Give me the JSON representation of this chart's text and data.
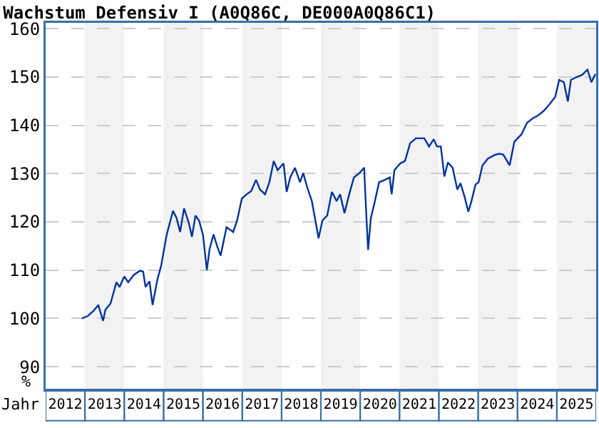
{
  "chart_data": {
    "type": "line",
    "title": "Wachstum Defensiv I (A0Q86C, DE000A0Q86C1)",
    "xlabel": "Jahr",
    "ylabel": "%",
    "x": [
      2012.92,
      2013.07,
      2013.22,
      2013.34,
      2013.4,
      2013.46,
      2013.52,
      2013.65,
      2013.8,
      2013.88,
      2014.0,
      2014.1,
      2014.24,
      2014.4,
      2014.48,
      2014.54,
      2014.64,
      2014.72,
      2014.84,
      2014.94,
      2015.08,
      2015.24,
      2015.33,
      2015.42,
      2015.52,
      2015.64,
      2015.72,
      2015.81,
      2015.9,
      2016.0,
      2016.1,
      2016.17,
      2016.27,
      2016.36,
      2016.45,
      2016.6,
      2016.77,
      2016.87,
      2016.99,
      2017.11,
      2017.23,
      2017.35,
      2017.45,
      2017.58,
      2017.69,
      2017.8,
      2017.9,
      2018.05,
      2018.13,
      2018.22,
      2018.34,
      2018.47,
      2018.55,
      2018.65,
      2018.77,
      2018.86,
      2018.94,
      2019.04,
      2019.16,
      2019.28,
      2019.4,
      2019.49,
      2019.6,
      2019.72,
      2019.84,
      2019.98,
      2020.1,
      2020.15,
      2020.2,
      2020.27,
      2020.36,
      2020.48,
      2020.63,
      2020.75,
      2020.8,
      2020.87,
      2021.02,
      2021.14,
      2021.27,
      2021.42,
      2021.63,
      2021.75,
      2021.87,
      2021.95,
      2022.05,
      2022.14,
      2022.23,
      2022.35,
      2022.47,
      2022.55,
      2022.65,
      2022.75,
      2022.83,
      2022.93,
      2023.01,
      2023.11,
      2023.25,
      2023.43,
      2023.55,
      2023.64,
      2023.8,
      2023.92,
      2024.1,
      2024.24,
      2024.4,
      2024.52,
      2024.67,
      2024.82,
      2024.96,
      2025.06,
      2025.18,
      2025.28,
      2025.36,
      2025.48,
      2025.64,
      2025.78,
      2025.88,
      2025.98
    ],
    "series": [
      {
        "color": "#0033a0",
        "values": [
          100.0,
          100.5,
          101.6,
          102.8,
          101.1,
          99.5,
          101.8,
          103.1,
          107.5,
          106.5,
          108.7,
          107.5,
          109.0,
          109.9,
          109.7,
          106.5,
          107.7,
          102.8,
          108.0,
          111.0,
          117.4,
          122.3,
          120.8,
          117.9,
          122.8,
          119.8,
          116.9,
          121.3,
          120.3,
          117.4,
          110.0,
          114.4,
          117.4,
          115.0,
          113.0,
          118.9,
          117.9,
          120.3,
          124.8,
          125.7,
          126.4,
          128.7,
          126.7,
          125.7,
          128.2,
          132.6,
          130.7,
          132.1,
          126.2,
          129.2,
          131.2,
          128.2,
          130.1,
          127.2,
          124.3,
          120.3,
          116.6,
          120.3,
          121.3,
          126.2,
          124.3,
          125.7,
          121.8,
          125.7,
          129.2,
          130.1,
          131.2,
          122.3,
          114.2,
          120.8,
          123.8,
          128.2,
          128.7,
          129.2,
          125.7,
          130.7,
          132.1,
          132.6,
          136.3,
          137.3,
          137.3,
          135.6,
          137.1,
          135.6,
          135.6,
          129.4,
          132.3,
          131.2,
          126.7,
          128.0,
          125.3,
          122.1,
          124.3,
          127.7,
          128.2,
          131.7,
          133.1,
          133.9,
          134.1,
          133.9,
          131.7,
          136.6,
          138.1,
          140.5,
          141.5,
          142.0,
          143.0,
          144.4,
          145.9,
          149.4,
          148.9,
          144.9,
          149.4,
          149.9,
          150.4,
          151.5,
          148.9,
          150.6
        ]
      }
    ],
    "xlim": [
      2012,
      2026
    ],
    "ylim": [
      85.3,
      161.2
    ],
    "xticks": [
      {
        "value": 2012.5,
        "label": "2012"
      },
      {
        "value": 2013.5,
        "label": "2013"
      },
      {
        "value": 2014.5,
        "label": "2014"
      },
      {
        "value": 2015.5,
        "label": "2015"
      },
      {
        "value": 2016.5,
        "label": "2016"
      },
      {
        "value": 2017.5,
        "label": "2017"
      },
      {
        "value": 2018.5,
        "label": "2018"
      },
      {
        "value": 2019.5,
        "label": "2019"
      },
      {
        "value": 2020.5,
        "label": "2020"
      },
      {
        "value": 2021.5,
        "label": "2021"
      },
      {
        "value": 2022.5,
        "label": "2022"
      },
      {
        "value": 2023.5,
        "label": "2023"
      },
      {
        "value": 2024.5,
        "label": "2024"
      },
      {
        "value": 2025.5,
        "label": "2025"
      }
    ],
    "yticks": [
      90,
      100,
      110,
      120,
      130,
      140,
      150,
      160
    ],
    "bands": [
      {
        "axis": "x",
        "from": 2013,
        "to": 2014,
        "color": "#f2f2f2"
      },
      {
        "axis": "x",
        "from": 2015,
        "to": 2016,
        "color": "#f2f2f2"
      },
      {
        "axis": "x",
        "from": 2017,
        "to": 2018,
        "color": "#f2f2f2"
      },
      {
        "axis": "x",
        "from": 2019,
        "to": 2020,
        "color": "#f2f2f2"
      },
      {
        "axis": "x",
        "from": 2021,
        "to": 2022,
        "color": "#f2f2f2"
      },
      {
        "axis": "x",
        "from": 2023,
        "to": 2024,
        "color": "#f2f2f2"
      },
      {
        "axis": "x",
        "from": 2025,
        "to": 2026,
        "color": "#f2f2f2"
      }
    ],
    "grid": "y",
    "line_style": "solid",
    "marker": "none"
  }
}
